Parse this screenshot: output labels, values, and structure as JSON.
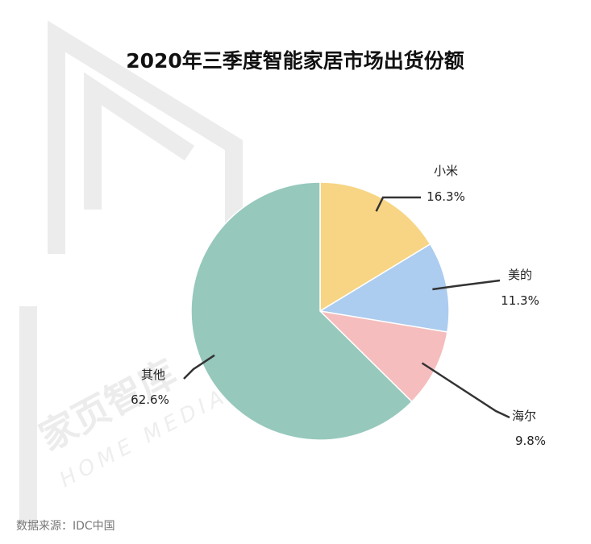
{
  "watermark": {
    "logo_text": "家页智库",
    "logo_sub": "HOME MEDIA"
  },
  "source_note": "数据来源：IDC中国",
  "chart_data": {
    "type": "pie",
    "title": "2020年三季度智能家居市场出货份额",
    "start_angle_deg": 0,
    "direction": "clockwise",
    "slices": [
      {
        "name": "小米",
        "value": 16.3,
        "value_label": "16.3%",
        "color": "#f7d584"
      },
      {
        "name": "美的",
        "value": 11.3,
        "value_label": "11.3%",
        "color": "#acccf0"
      },
      {
        "name": "海尔",
        "value": 9.8,
        "value_label": "9.8%",
        "color": "#f5bdbd"
      },
      {
        "name": "其他",
        "value": 62.6,
        "value_label": "62.6%",
        "color": "#96c8bc"
      }
    ]
  }
}
